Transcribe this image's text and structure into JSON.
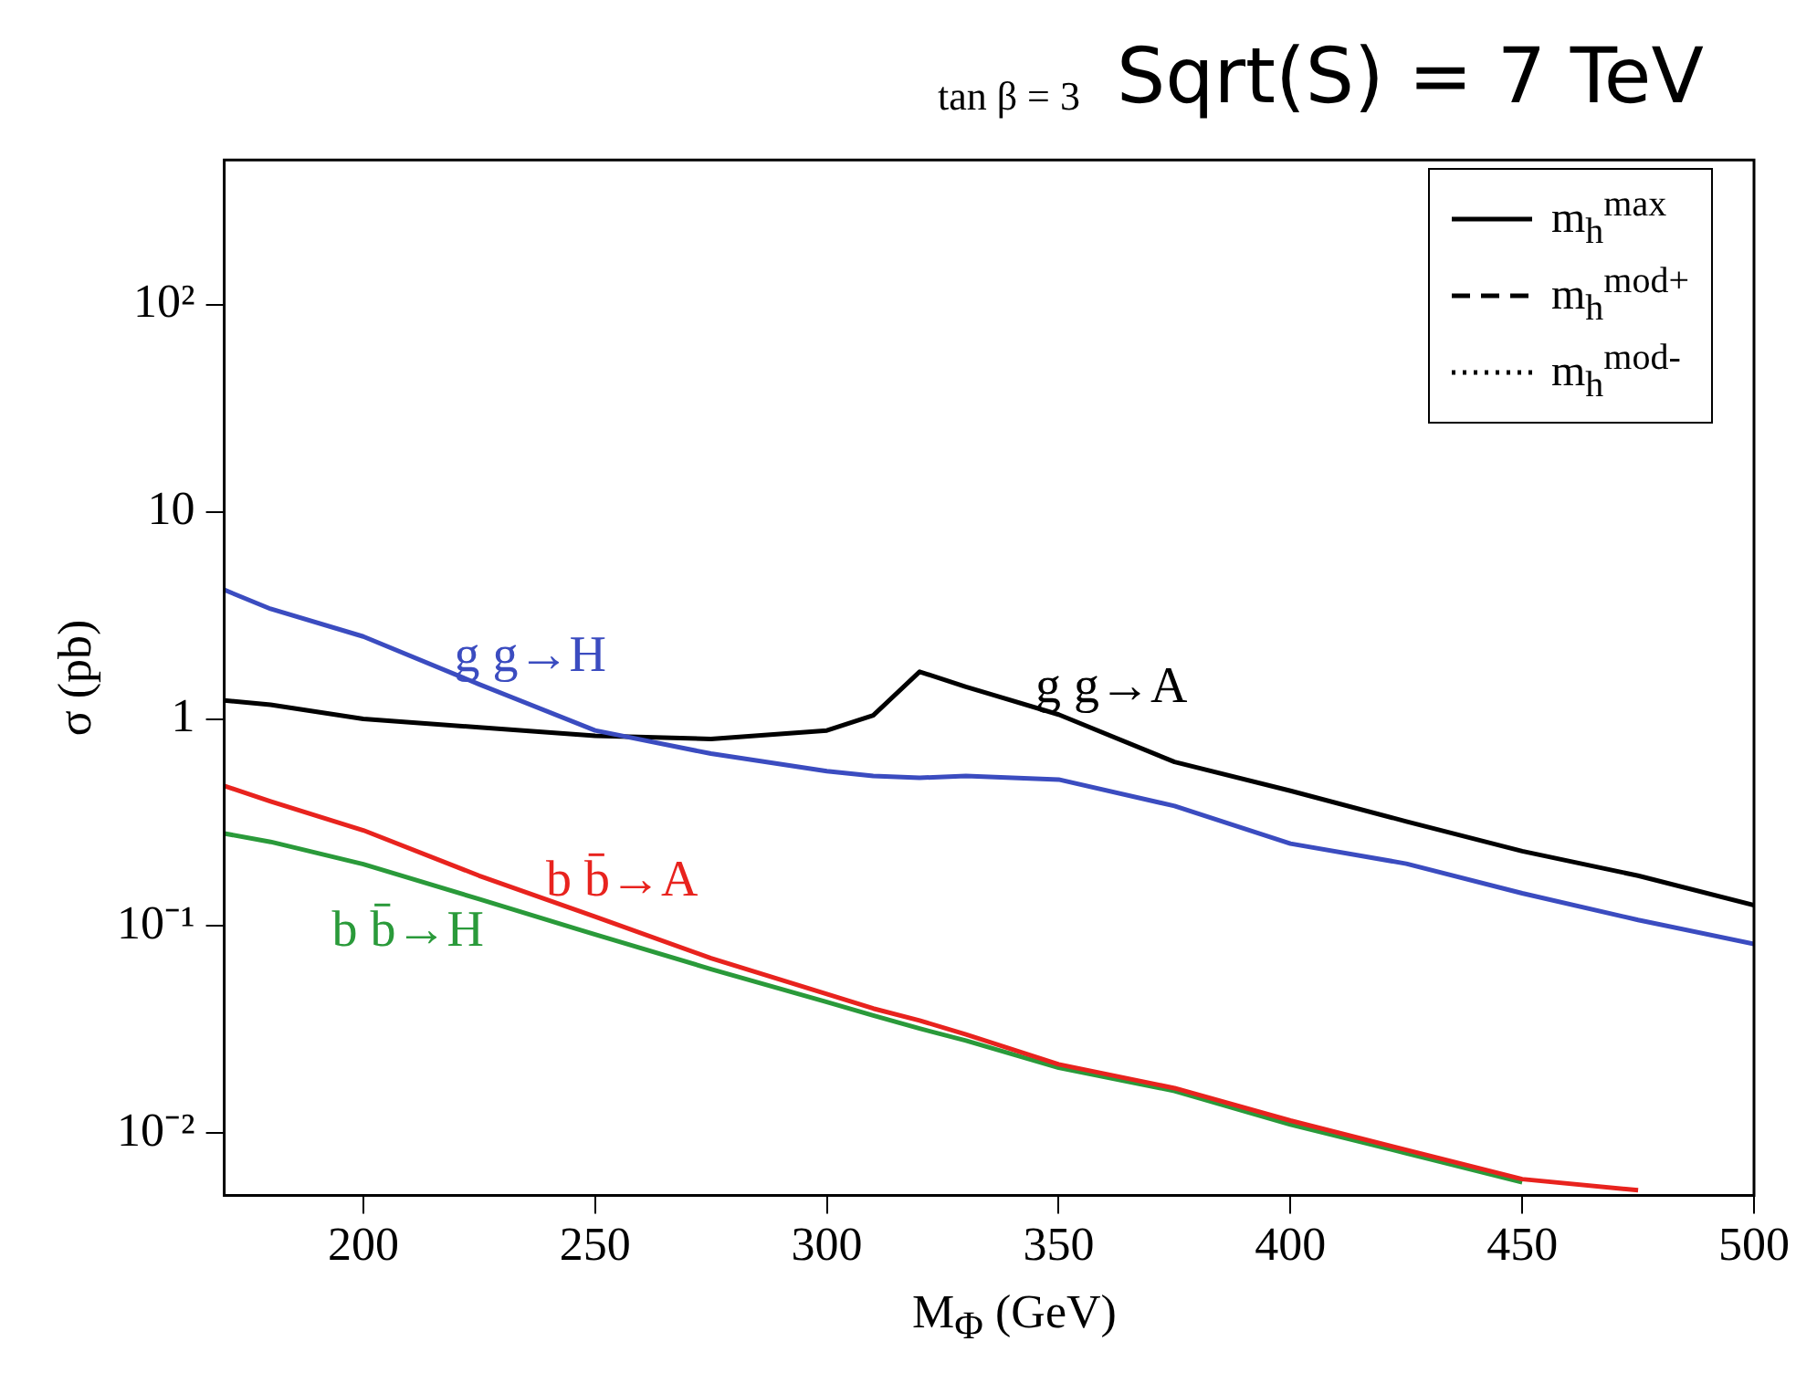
{
  "chart_data": {
    "type": "line",
    "title": "Sqrt(S) = 7 TeV",
    "subtitle": "tan β = 3",
    "xlabel": "M$_{Φ}$ (GeV)",
    "ylabel": "σ (pb)",
    "x": [
      170,
      180,
      200,
      225,
      250,
      275,
      300,
      310,
      320,
      330,
      350,
      375,
      400,
      425,
      450,
      475,
      500
    ],
    "series": [
      {
        "name": "g g→H",
        "color": "#3b4cc0",
        "values": [
          4.2,
          3.4,
          2.5,
          1.47,
          0.88,
          0.68,
          0.56,
          0.53,
          0.52,
          0.53,
          0.51,
          0.38,
          0.25,
          0.2,
          0.144,
          0.107,
          0.082
        ]
      },
      {
        "name": "g g→A",
        "color": "#000000",
        "values": [
          1.23,
          1.17,
          1.0,
          0.91,
          0.83,
          0.8,
          0.88,
          1.04,
          1.69,
          1.43,
          1.05,
          0.62,
          0.45,
          0.32,
          0.23,
          0.175,
          0.126
        ]
      },
      {
        "name": "b b̄→A",
        "color": "#e8231e",
        "values": [
          0.475,
          0.4,
          0.29,
          0.175,
          0.111,
          0.07,
          0.047,
          0.04,
          0.035,
          0.03,
          0.0215,
          0.0165,
          0.0115,
          0.0083,
          0.006,
          0.0053,
          null
        ]
      },
      {
        "name": "b b̄→H",
        "color": "#2a9a3a",
        "values": [
          0.28,
          0.255,
          0.199,
          0.135,
          0.091,
          0.062,
          0.043,
          0.037,
          0.032,
          0.028,
          0.0207,
          0.016,
          0.011,
          0.008,
          0.0058,
          null,
          null
        ]
      }
    ],
    "xlim": [
      170,
      500
    ],
    "xticks": [
      200,
      250,
      300,
      350,
      400,
      450,
      500
    ],
    "log": "y",
    "ylim": [
      0.005,
      500
    ],
    "yticks": [
      {
        "value": 0.01,
        "label": "10⁻²"
      },
      {
        "value": 0.1,
        "label": "10⁻¹"
      },
      1,
      10,
      {
        "value": 100,
        "label": "10²"
      }
    ],
    "marker": "none",
    "line_style": "solid",
    "annotations": [
      "m$_{h}$$^{max}$",
      "m$_{h}$$^{mod+}$",
      "m$_{h}$$^{mod-}$"
    ]
  }
}
